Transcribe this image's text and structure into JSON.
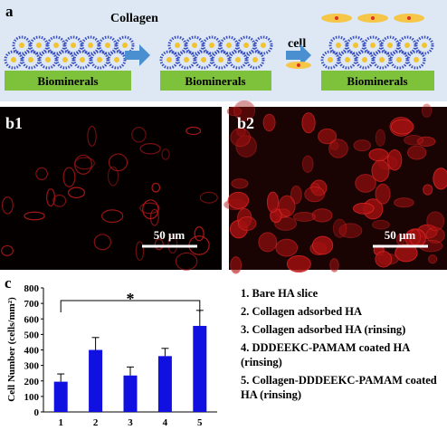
{
  "panel_a": {
    "label": "a",
    "step1": "Collagen",
    "step2": "cell",
    "substrates": [
      "Biominerals",
      "Biominerals",
      "Biominerals"
    ]
  },
  "panel_b": {
    "left_label": "b1",
    "right_label": "b2",
    "left_scale": "50 μm",
    "right_scale": "50 μm"
  },
  "panel_c": {
    "label": "c",
    "legend": [
      "1. Bare HA slice",
      "2. Collagen adsorbed HA",
      "3. Collagen adsorbed HA (rinsing)",
      "4. DDDEEKC-PAMAM coated HA (rinsing)",
      "5. Collagen-DDDEEKC-PAMAM coated HA (rinsing)"
    ]
  },
  "chart_data": {
    "type": "bar",
    "ylabel": "Cell Number (cells/mm²)",
    "categories": [
      "1",
      "2",
      "3",
      "4",
      "5"
    ],
    "values": [
      195,
      400,
      235,
      360,
      555
    ],
    "errors": [
      50,
      80,
      55,
      50,
      100
    ],
    "color": "#1010e0",
    "ylim": [
      0,
      800
    ],
    "yticks": [
      0,
      100,
      200,
      300,
      400,
      500,
      600,
      700,
      800
    ],
    "annotation": "*"
  }
}
